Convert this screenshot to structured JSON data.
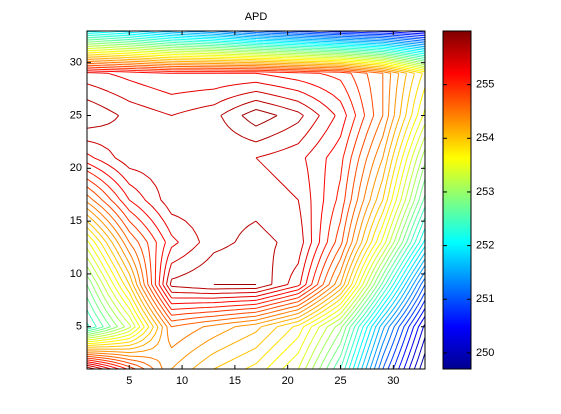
{
  "chart_data": {
    "type": "contour",
    "title": "APD",
    "colormap": "jet",
    "x": [
      1,
      5,
      9,
      13,
      17,
      21,
      25,
      29,
      33
    ],
    "y": [
      1,
      5,
      9,
      13,
      17,
      21,
      25,
      29,
      33
    ],
    "z": [
      [
        255.8,
        255,
        254.3,
        254,
        253.8,
        253.4,
        252.5,
        251,
        249.8
      ],
      [
        252.3,
        253.2,
        254.6,
        254.4,
        254.2,
        253.8,
        253,
        251.5,
        250.2
      ],
      [
        252.8,
        254,
        255.7,
        255.8,
        255.8,
        255.4,
        254.3,
        252.6,
        251
      ],
      [
        253.5,
        254.6,
        255.3,
        255.6,
        255.7,
        255.6,
        254.8,
        253.5,
        252
      ],
      [
        254.5,
        255.2,
        255.6,
        255.6,
        255.6,
        255.5,
        255,
        254,
        252.6
      ],
      [
        255.3,
        255.6,
        255.6,
        255.5,
        255.5,
        255.4,
        255.1,
        254.3,
        253
      ],
      [
        255.8,
        255.6,
        255.5,
        255.6,
        255.9,
        255.7,
        255.3,
        254.6,
        253.5
      ],
      [
        255.4,
        255.3,
        255.2,
        255.2,
        255.2,
        255.1,
        255,
        254.6,
        253.8
      ],
      [
        252,
        251.8,
        251.5,
        251.3,
        251,
        250.8,
        250.6,
        250.5,
        250.3
      ]
    ],
    "levels": [
      249.8,
      249.95,
      250.1,
      250.25,
      250.4,
      250.55,
      250.7,
      250.85,
      251,
      251.15,
      251.3,
      251.45,
      251.6,
      251.75,
      251.9,
      252.05,
      252.2,
      252.35,
      252.5,
      252.65,
      252.8,
      252.95,
      253.1,
      253.25,
      253.4,
      253.55,
      253.7,
      253.85,
      254,
      254.15,
      254.3,
      254.45,
      254.6,
      254.75,
      254.9,
      255.05,
      255.2,
      255.35,
      255.5,
      255.65,
      255.8
    ],
    "xlim": [
      1,
      33
    ],
    "ylim": [
      1,
      33
    ],
    "xticks": [
      5,
      10,
      15,
      20,
      25,
      30
    ],
    "yticks": [
      5,
      10,
      15,
      20,
      25,
      30
    ],
    "clim": [
      249.7,
      256
    ],
    "cticks": [
      250,
      251,
      252,
      253,
      254,
      255
    ]
  }
}
